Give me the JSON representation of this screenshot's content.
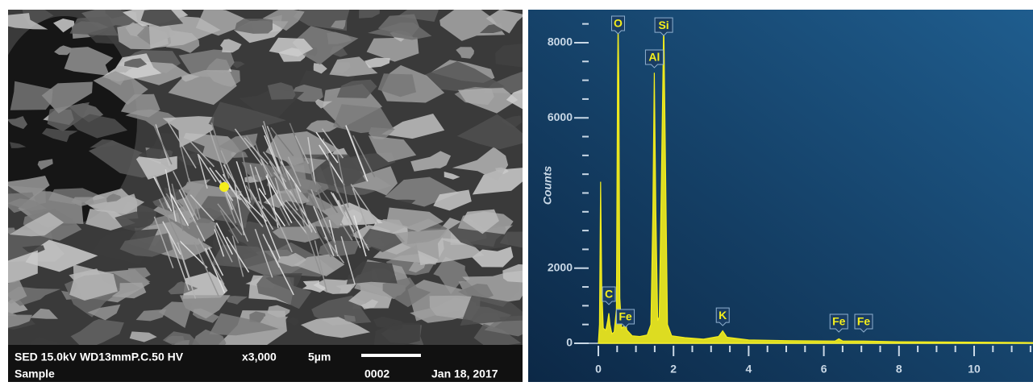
{
  "sem_image": {
    "caption": {
      "line1": "SED 15.0kV WD13mmP.C.50 HV",
      "magnification": "x3,000",
      "scale": "5µm",
      "line2": "Sample",
      "number": "0002",
      "date": "Jan 18, 2017"
    }
  },
  "chart_data": {
    "type": "area",
    "ylabel": "Counts",
    "color": "#f4ee1c",
    "x": [
      0.0,
      0.03,
      0.06,
      0.09,
      0.13,
      0.2,
      0.25,
      0.28,
      0.31,
      0.36,
      0.42,
      0.48,
      0.51,
      0.525,
      0.545,
      0.57,
      0.62,
      0.68,
      0.72,
      0.76,
      0.9,
      1.1,
      1.3,
      1.4,
      1.45,
      1.49,
      1.53,
      1.58,
      1.62,
      1.68,
      1.74,
      1.79,
      1.84,
      1.95,
      2.3,
      2.8,
      3.2,
      3.31,
      3.42,
      4,
      5,
      6.3,
      6.4,
      6.5,
      7.06,
      8,
      10,
      11.6
    ],
    "values": [
      0,
      500,
      4300,
      1500,
      400,
      350,
      600,
      800,
      500,
      250,
      300,
      900,
      7000,
      8600,
      7000,
      1200,
      400,
      450,
      550,
      350,
      200,
      180,
      220,
      500,
      3500,
      7200,
      3500,
      600,
      700,
      4500,
      8600,
      4500,
      500,
      200,
      150,
      110,
      180,
      330,
      160,
      90,
      70,
      60,
      120,
      60,
      60,
      40,
      30,
      20
    ],
    "peak_labels": [
      {
        "text": "C",
        "energy": 0.28,
        "counts": 1030
      },
      {
        "text": "O",
        "energy": 0.525,
        "counts": 8236
      },
      {
        "text": "Fe",
        "energy": 0.72,
        "counts": 430
      },
      {
        "text": "Al",
        "energy": 1.49,
        "counts": 7335
      },
      {
        "text": "Si",
        "energy": 1.74,
        "counts": 8190
      },
      {
        "text": "K",
        "energy": 3.31,
        "counts": 470
      },
      {
        "text": "Fe",
        "energy": 6.4,
        "counts": 300
      },
      {
        "text": "Fe",
        "energy": 7.06,
        "counts": 300
      }
    ],
    "xlim": [
      -0.3,
      11.6
    ],
    "ylim": [
      0,
      8900
    ],
    "xticks": [
      0,
      2,
      4,
      6,
      8,
      10
    ],
    "xminorticks": [
      0.5,
      1,
      1.5,
      2.5,
      3,
      3.5,
      4.5,
      5,
      5.5,
      6.5,
      7,
      7.5,
      8.5,
      9,
      9.5,
      10.5,
      11,
      11.5
    ],
    "yticks": [
      0,
      2000,
      6000,
      8000
    ],
    "yminorticks": [
      500,
      1000,
      1500,
      2500,
      3000,
      3500,
      4000,
      4500,
      5000,
      5500,
      6500,
      7000,
      7500,
      8500
    ]
  }
}
